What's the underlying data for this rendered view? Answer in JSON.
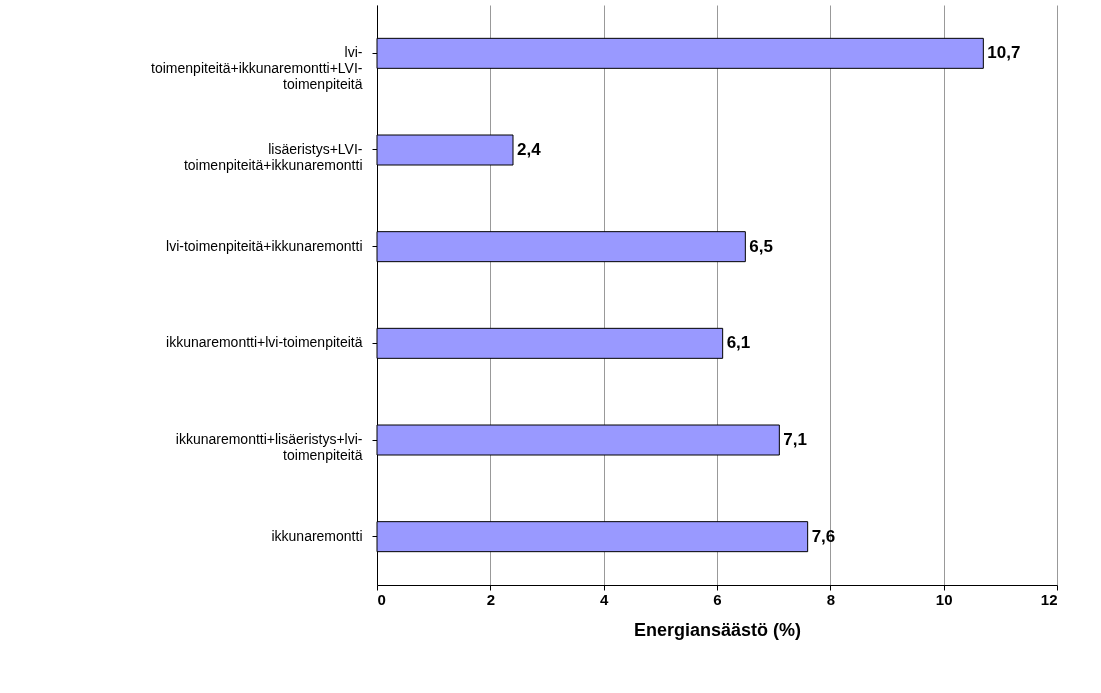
{
  "chart_data": {
    "type": "bar",
    "orientation": "horizontal",
    "categories": [
      "lvi-toimenpiteitä+ikkunaremontti+LVI-toimenpiteitä",
      "lisäeristys+LVI-toimenpiteitä+ikkunaremontti",
      "lvi-toimenpiteitä+ikkunaremontti",
      "ikkunaremontti+lvi-toimenpiteitä",
      "ikkunaremontti+lisäeristys+lvi-toimenpiteitä",
      "ikkunaremontti"
    ],
    "values": [
      10.7,
      2.4,
      6.5,
      6.1,
      7.1,
      7.6
    ],
    "color": "#9999ff",
    "xlabel": "Energiansäästö (%)",
    "xlim": [
      0,
      12
    ],
    "xticks": [
      0,
      2,
      4,
      6,
      8,
      10,
      12
    ],
    "value_labels": [
      "10,7",
      "2,4",
      "6,5",
      "6,1",
      "7,1",
      "7,6"
    ],
    "grid": "x"
  }
}
